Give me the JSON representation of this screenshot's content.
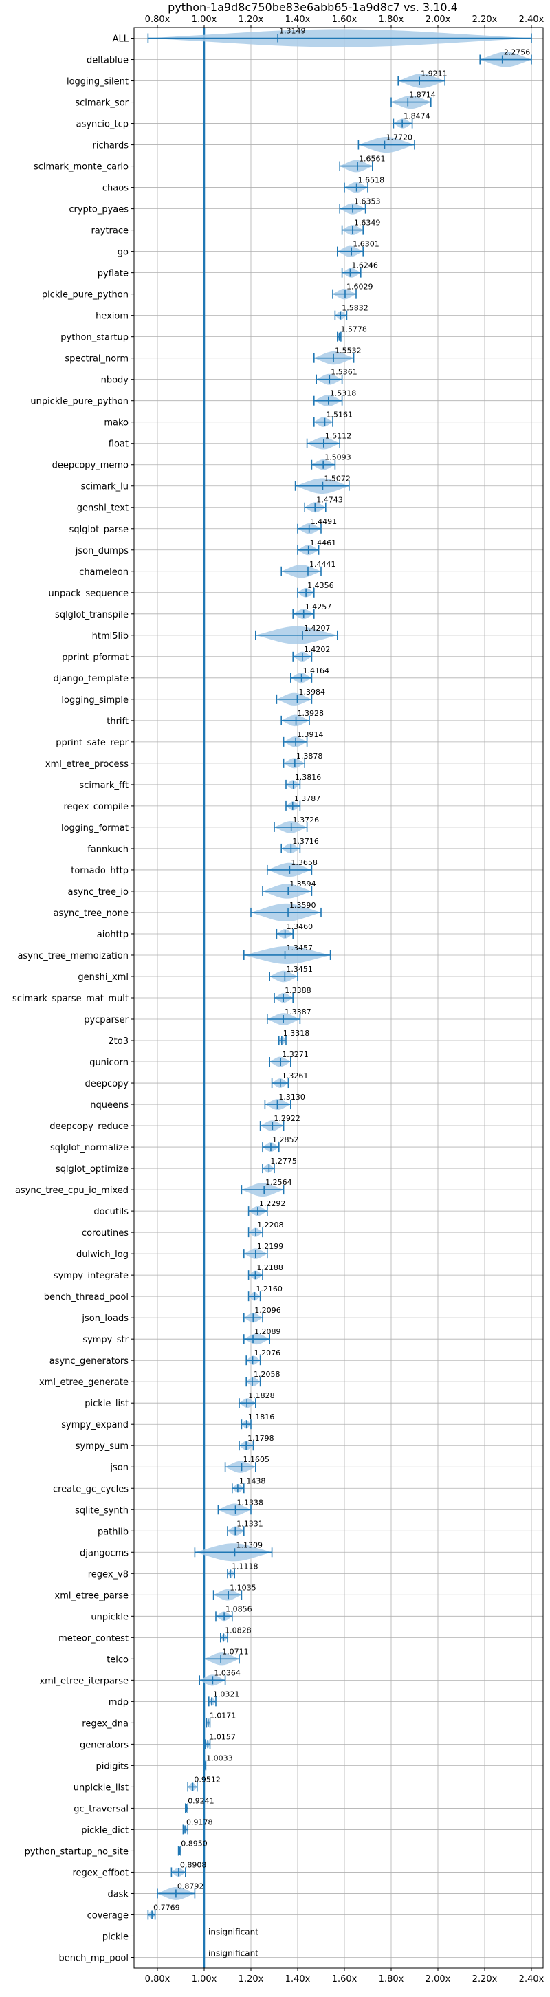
{
  "chart_data": {
    "type": "violin",
    "title": "python-1a9d8c750be83e6abb65-1a9d8c7 vs. 3.10.4",
    "xlabel": "",
    "ylabel": "",
    "xlim": [
      0.7,
      2.45
    ],
    "xticks": [
      0.8,
      1.0,
      1.2,
      1.4,
      1.6,
      1.8,
      2.0,
      2.2,
      2.4
    ],
    "xtick_labels": [
      "0.80x",
      "1.00x",
      "1.20x",
      "1.40x",
      "1.60x",
      "1.80x",
      "2.00x",
      "2.20x",
      "2.40x"
    ],
    "reference_line": 1.0,
    "grid": true,
    "colors": {
      "violin": "#a9cbe8",
      "bar": "#1f77b4",
      "reference": "#1f77b4",
      "grid": "#b0b0b0"
    },
    "benchmarks": [
      {
        "name": "ALL",
        "mean": 1.3149,
        "label": "1.3149",
        "min": 0.76,
        "max": 2.4
      },
      {
        "name": "deltablue",
        "mean": 2.2756,
        "label": "2.2756",
        "min": 2.18,
        "max": 2.4
      },
      {
        "name": "logging_silent",
        "mean": 1.9211,
        "label": "1.9211",
        "min": 1.83,
        "max": 2.03
      },
      {
        "name": "scimark_sor",
        "mean": 1.8714,
        "label": "1.8714",
        "min": 1.8,
        "max": 1.97
      },
      {
        "name": "asyncio_tcp",
        "mean": 1.8474,
        "label": "1.8474",
        "min": 1.81,
        "max": 1.89
      },
      {
        "name": "richards",
        "mean": 1.772,
        "label": "1.7720",
        "min": 1.66,
        "max": 1.9
      },
      {
        "name": "scimark_monte_carlo",
        "mean": 1.6561,
        "label": "1.6561",
        "min": 1.58,
        "max": 1.72
      },
      {
        "name": "chaos",
        "mean": 1.6518,
        "label": "1.6518",
        "min": 1.6,
        "max": 1.7
      },
      {
        "name": "crypto_pyaes",
        "mean": 1.6353,
        "label": "1.6353",
        "min": 1.58,
        "max": 1.69
      },
      {
        "name": "raytrace",
        "mean": 1.6349,
        "label": "1.6349",
        "min": 1.59,
        "max": 1.68
      },
      {
        "name": "go",
        "mean": 1.6301,
        "label": "1.6301",
        "min": 1.57,
        "max": 1.68
      },
      {
        "name": "pyflate",
        "mean": 1.6246,
        "label": "1.6246",
        "min": 1.59,
        "max": 1.67
      },
      {
        "name": "pickle_pure_python",
        "mean": 1.6029,
        "label": "1.6029",
        "min": 1.55,
        "max": 1.65
      },
      {
        "name": "hexiom",
        "mean": 1.5832,
        "label": "1.5832",
        "min": 1.56,
        "max": 1.61
      },
      {
        "name": "python_startup",
        "mean": 1.5778,
        "label": "1.5778",
        "min": 1.57,
        "max": 1.585
      },
      {
        "name": "spectral_norm",
        "mean": 1.5532,
        "label": "1.5532",
        "min": 1.47,
        "max": 1.64
      },
      {
        "name": "nbody",
        "mean": 1.5361,
        "label": "1.5361",
        "min": 1.48,
        "max": 1.59
      },
      {
        "name": "unpickle_pure_python",
        "mean": 1.5318,
        "label": "1.5318",
        "min": 1.47,
        "max": 1.59
      },
      {
        "name": "mako",
        "mean": 1.5161,
        "label": "1.5161",
        "min": 1.47,
        "max": 1.55
      },
      {
        "name": "float",
        "mean": 1.5112,
        "label": "1.5112",
        "min": 1.44,
        "max": 1.58
      },
      {
        "name": "deepcopy_memo",
        "mean": 1.5093,
        "label": "1.5093",
        "min": 1.46,
        "max": 1.56
      },
      {
        "name": "scimark_lu",
        "mean": 1.5072,
        "label": "1.5072",
        "min": 1.39,
        "max": 1.62
      },
      {
        "name": "genshi_text",
        "mean": 1.4743,
        "label": "1.4743",
        "min": 1.43,
        "max": 1.52
      },
      {
        "name": "sqlglot_parse",
        "mean": 1.4491,
        "label": "1.4491",
        "min": 1.4,
        "max": 1.5
      },
      {
        "name": "json_dumps",
        "mean": 1.4461,
        "label": "1.4461",
        "min": 1.4,
        "max": 1.49
      },
      {
        "name": "chameleon",
        "mean": 1.4441,
        "label": "1.4441",
        "min": 1.33,
        "max": 1.5
      },
      {
        "name": "unpack_sequence",
        "mean": 1.4356,
        "label": "1.4356",
        "min": 1.4,
        "max": 1.47
      },
      {
        "name": "sqlglot_transpile",
        "mean": 1.4257,
        "label": "1.4257",
        "min": 1.38,
        "max": 1.47
      },
      {
        "name": "html5lib",
        "mean": 1.4207,
        "label": "1.4207",
        "min": 1.22,
        "max": 1.57
      },
      {
        "name": "pprint_pformat",
        "mean": 1.4202,
        "label": "1.4202",
        "min": 1.38,
        "max": 1.46
      },
      {
        "name": "django_template",
        "mean": 1.4164,
        "label": "1.4164",
        "min": 1.37,
        "max": 1.46
      },
      {
        "name": "logging_simple",
        "mean": 1.3984,
        "label": "1.3984",
        "min": 1.31,
        "max": 1.46
      },
      {
        "name": "thrift",
        "mean": 1.3928,
        "label": "1.3928",
        "min": 1.33,
        "max": 1.45
      },
      {
        "name": "pprint_safe_repr",
        "mean": 1.3914,
        "label": "1.3914",
        "min": 1.34,
        "max": 1.44
      },
      {
        "name": "xml_etree_process",
        "mean": 1.3878,
        "label": "1.3878",
        "min": 1.34,
        "max": 1.43
      },
      {
        "name": "scimark_fft",
        "mean": 1.3816,
        "label": "1.3816",
        "min": 1.35,
        "max": 1.41
      },
      {
        "name": "regex_compile",
        "mean": 1.3787,
        "label": "1.3787",
        "min": 1.35,
        "max": 1.41
      },
      {
        "name": "logging_format",
        "mean": 1.3726,
        "label": "1.3726",
        "min": 1.3,
        "max": 1.44
      },
      {
        "name": "fannkuch",
        "mean": 1.3716,
        "label": "1.3716",
        "min": 1.33,
        "max": 1.41
      },
      {
        "name": "tornado_http",
        "mean": 1.3658,
        "label": "1.3658",
        "min": 1.27,
        "max": 1.46
      },
      {
        "name": "async_tree_io",
        "mean": 1.3594,
        "label": "1.3594",
        "min": 1.25,
        "max": 1.46
      },
      {
        "name": "async_tree_none",
        "mean": 1.359,
        "label": "1.3590",
        "min": 1.2,
        "max": 1.5
      },
      {
        "name": "aiohttp",
        "mean": 1.346,
        "label": "1.3460",
        "min": 1.31,
        "max": 1.38
      },
      {
        "name": "async_tree_memoization",
        "mean": 1.3457,
        "label": "1.3457",
        "min": 1.17,
        "max": 1.54
      },
      {
        "name": "genshi_xml",
        "mean": 1.3451,
        "label": "1.3451",
        "min": 1.28,
        "max": 1.4
      },
      {
        "name": "scimark_sparse_mat_mult",
        "mean": 1.3388,
        "label": "1.3388",
        "min": 1.3,
        "max": 1.38
      },
      {
        "name": "pycparser",
        "mean": 1.3387,
        "label": "1.3387",
        "min": 1.27,
        "max": 1.41
      },
      {
        "name": "2to3",
        "mean": 1.3318,
        "label": "1.3318",
        "min": 1.32,
        "max": 1.35
      },
      {
        "name": "gunicorn",
        "mean": 1.3271,
        "label": "1.3271",
        "min": 1.28,
        "max": 1.37
      },
      {
        "name": "deepcopy",
        "mean": 1.3261,
        "label": "1.3261",
        "min": 1.29,
        "max": 1.36
      },
      {
        "name": "nqueens",
        "mean": 1.313,
        "label": "1.3130",
        "min": 1.26,
        "max": 1.37
      },
      {
        "name": "deepcopy_reduce",
        "mean": 1.2922,
        "label": "1.2922",
        "min": 1.24,
        "max": 1.34
      },
      {
        "name": "sqlglot_normalize",
        "mean": 1.2852,
        "label": "1.2852",
        "min": 1.25,
        "max": 1.32
      },
      {
        "name": "sqlglot_optimize",
        "mean": 1.2775,
        "label": "1.2775",
        "min": 1.25,
        "max": 1.3
      },
      {
        "name": "async_tree_cpu_io_mixed",
        "mean": 1.2564,
        "label": "1.2564",
        "min": 1.16,
        "max": 1.34
      },
      {
        "name": "docutils",
        "mean": 1.2292,
        "label": "1.2292",
        "min": 1.19,
        "max": 1.27
      },
      {
        "name": "coroutines",
        "mean": 1.2208,
        "label": "1.2208",
        "min": 1.19,
        "max": 1.25
      },
      {
        "name": "dulwich_log",
        "mean": 1.2199,
        "label": "1.2199",
        "min": 1.17,
        "max": 1.27
      },
      {
        "name": "sympy_integrate",
        "mean": 1.2188,
        "label": "1.2188",
        "min": 1.19,
        "max": 1.25
      },
      {
        "name": "bench_thread_pool",
        "mean": 1.216,
        "label": "1.2160",
        "min": 1.19,
        "max": 1.24
      },
      {
        "name": "json_loads",
        "mean": 1.2096,
        "label": "1.2096",
        "min": 1.17,
        "max": 1.25
      },
      {
        "name": "sympy_str",
        "mean": 1.2089,
        "label": "1.2089",
        "min": 1.17,
        "max": 1.28
      },
      {
        "name": "async_generators",
        "mean": 1.2076,
        "label": "1.2076",
        "min": 1.18,
        "max": 1.24
      },
      {
        "name": "xml_etree_generate",
        "mean": 1.2058,
        "label": "1.2058",
        "min": 1.18,
        "max": 1.24
      },
      {
        "name": "pickle_list",
        "mean": 1.1828,
        "label": "1.1828",
        "min": 1.15,
        "max": 1.22
      },
      {
        "name": "sympy_expand",
        "mean": 1.1816,
        "label": "1.1816",
        "min": 1.16,
        "max": 1.2
      },
      {
        "name": "sympy_sum",
        "mean": 1.1798,
        "label": "1.1798",
        "min": 1.15,
        "max": 1.21
      },
      {
        "name": "json",
        "mean": 1.1605,
        "label": "1.1605",
        "min": 1.09,
        "max": 1.22
      },
      {
        "name": "create_gc_cycles",
        "mean": 1.1438,
        "label": "1.1438",
        "min": 1.12,
        "max": 1.17
      },
      {
        "name": "sqlite_synth",
        "mean": 1.1338,
        "label": "1.1338",
        "min": 1.06,
        "max": 1.2
      },
      {
        "name": "pathlib",
        "mean": 1.1331,
        "label": "1.1331",
        "min": 1.1,
        "max": 1.17
      },
      {
        "name": "djangocms",
        "mean": 1.1309,
        "label": "1.1309",
        "min": 0.96,
        "max": 1.29
      },
      {
        "name": "regex_v8",
        "mean": 1.1118,
        "label": "1.1118",
        "min": 1.1,
        "max": 1.13
      },
      {
        "name": "xml_etree_parse",
        "mean": 1.1035,
        "label": "1.1035",
        "min": 1.04,
        "max": 1.16
      },
      {
        "name": "unpickle",
        "mean": 1.0856,
        "label": "1.0856",
        "min": 1.05,
        "max": 1.12
      },
      {
        "name": "meteor_contest",
        "mean": 1.0828,
        "label": "1.0828",
        "min": 1.07,
        "max": 1.1
      },
      {
        "name": "telco",
        "mean": 1.0711,
        "label": "1.0711",
        "min": 1.0,
        "max": 1.15
      },
      {
        "name": "xml_etree_iterparse",
        "mean": 1.0364,
        "label": "1.0364",
        "min": 0.98,
        "max": 1.09
      },
      {
        "name": "mdp",
        "mean": 1.0321,
        "label": "1.0321",
        "min": 1.02,
        "max": 1.05
      },
      {
        "name": "regex_dna",
        "mean": 1.0171,
        "label": "1.0171",
        "min": 1.01,
        "max": 1.025
      },
      {
        "name": "generators",
        "mean": 1.0157,
        "label": "1.0157",
        "min": 1.005,
        "max": 1.025
      },
      {
        "name": "pidigits",
        "mean": 1.0033,
        "label": "1.0033",
        "min": 1.0,
        "max": 1.007
      },
      {
        "name": "unpickle_list",
        "mean": 0.9512,
        "label": "0.9512",
        "min": 0.93,
        "max": 0.97
      },
      {
        "name": "gc_traversal",
        "mean": 0.9241,
        "label": "0.9241",
        "min": 0.92,
        "max": 0.93
      },
      {
        "name": "pickle_dict",
        "mean": 0.9178,
        "label": "0.9178",
        "min": 0.91,
        "max": 0.93
      },
      {
        "name": "python_startup_no_site",
        "mean": 0.895,
        "label": "0.8950",
        "min": 0.89,
        "max": 0.9
      },
      {
        "name": "regex_effbot",
        "mean": 0.8908,
        "label": "0.8908",
        "min": 0.86,
        "max": 0.92
      },
      {
        "name": "dask",
        "mean": 0.8792,
        "label": "0.8792",
        "min": 0.8,
        "max": 0.96
      },
      {
        "name": "coverage",
        "mean": 0.7769,
        "label": "0.7769",
        "min": 0.76,
        "max": 0.79
      },
      {
        "name": "pickle",
        "insignificant": true,
        "label": "insignificant"
      },
      {
        "name": "bench_mp_pool",
        "insignificant": true,
        "label": "insignificant"
      }
    ]
  }
}
